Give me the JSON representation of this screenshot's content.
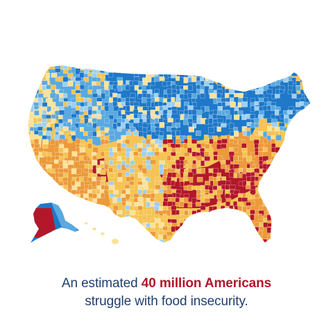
{
  "colors": {
    "background": "#ffffff",
    "text_primary": "#1f3f6e",
    "text_emphasis": "#b3172a",
    "level_low_dark": "#1f78c8",
    "level_low": "#5aa9e0",
    "level_low_light": "#9fd0f0",
    "level_mid_light": "#fbe29a",
    "level_mid": "#f5c453",
    "level_high": "#ec9a3a",
    "level_highest": "#b3172a"
  },
  "map": {
    "subject": "county-level food insecurity choropleth",
    "regions": [
      "contiguous-us",
      "alaska",
      "hawaii"
    ]
  },
  "caption": {
    "part1": "An estimated ",
    "emphasis": "40 million Americans",
    "line2": "struggle with food insecurity."
  }
}
